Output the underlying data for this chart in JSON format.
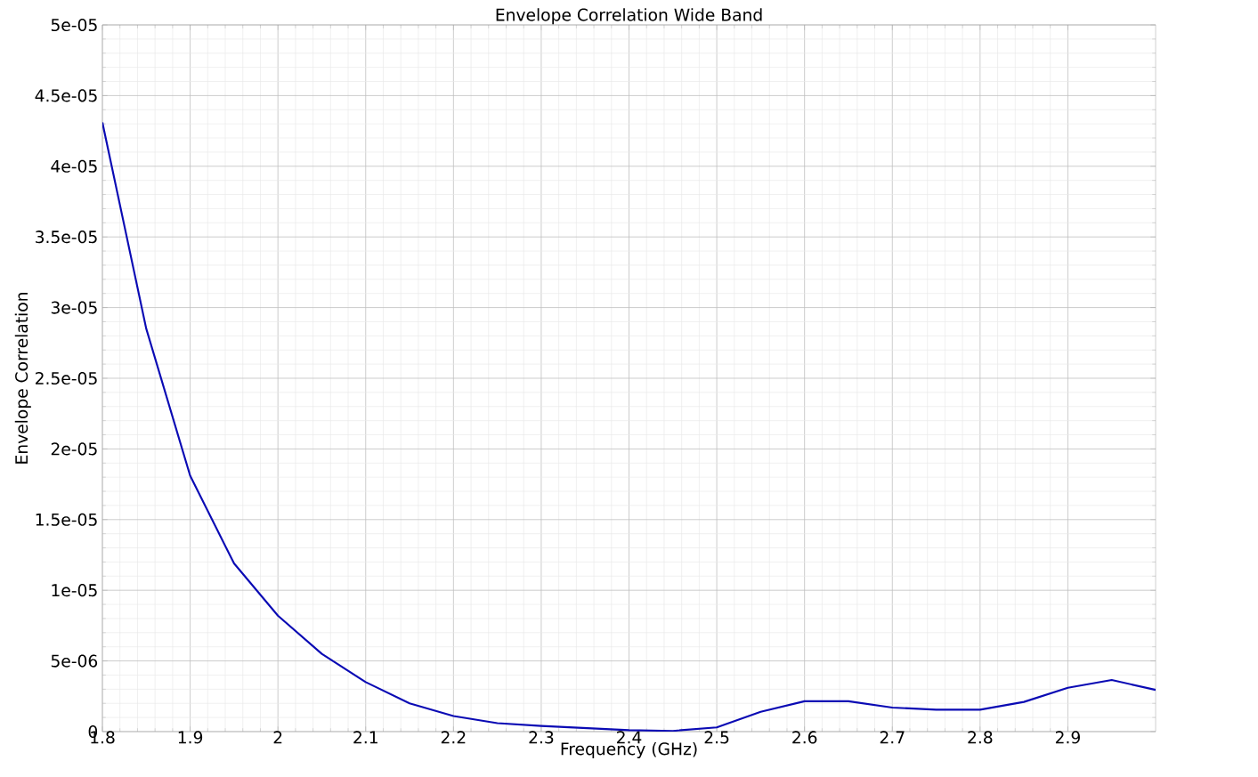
{
  "chart_data": {
    "type": "line",
    "title": "Envelope Correlation Wide Band",
    "xlabel": "Frequency (GHz)",
    "ylabel": "Envelope Correlation",
    "x": [
      1.8,
      1.85,
      1.9,
      1.95,
      2.0,
      2.05,
      2.1,
      2.15,
      2.2,
      2.25,
      2.3,
      2.35,
      2.4,
      2.45,
      2.5,
      2.55,
      2.6,
      2.65,
      2.7,
      2.75,
      2.8,
      2.85,
      2.9,
      2.95,
      3.0
    ],
    "series": [
      {
        "color": "#0a0ab4",
        "values": [
          4.31e-05,
          2.85e-05,
          1.81e-05,
          1.19e-05,
          8.2e-06,
          5.5e-06,
          3.5e-06,
          2e-06,
          1.1e-06,
          6e-07,
          4e-07,
          2.5e-07,
          1e-07,
          5e-08,
          3e-07,
          1.4e-06,
          2.15e-06,
          2.15e-06,
          1.7e-06,
          1.55e-06,
          1.55e-06,
          2.1e-06,
          3.1e-06,
          3.65e-06,
          2.95e-06
        ]
      }
    ],
    "xlim": [
      1.8,
      3.0
    ],
    "ylim": [
      0,
      5e-05
    ],
    "xticks": [
      1.8,
      1.9,
      2,
      2.1,
      2.2,
      2.3,
      2.4,
      2.5,
      2.6,
      2.7,
      2.8,
      2.9
    ],
    "yticks": [
      0,
      {
        "value": 5e-06,
        "label": "5e-06"
      },
      {
        "value": 1e-05,
        "label": "1e-05"
      },
      {
        "value": 1.5e-05,
        "label": "1.5e-05"
      },
      {
        "value": 2e-05,
        "label": "2e-05"
      },
      {
        "value": 2.5e-05,
        "label": "2.5e-05"
      },
      {
        "value": 3e-05,
        "label": "3e-05"
      },
      {
        "value": 3.5e-05,
        "label": "3.5e-05"
      },
      {
        "value": 4e-05,
        "label": "4e-05"
      },
      {
        "value": 4.5e-05,
        "label": "4.5e-05"
      },
      {
        "value": 5e-05,
        "label": "5e-05"
      }
    ],
    "grid": true,
    "marker": "none",
    "line_style": "solid"
  }
}
